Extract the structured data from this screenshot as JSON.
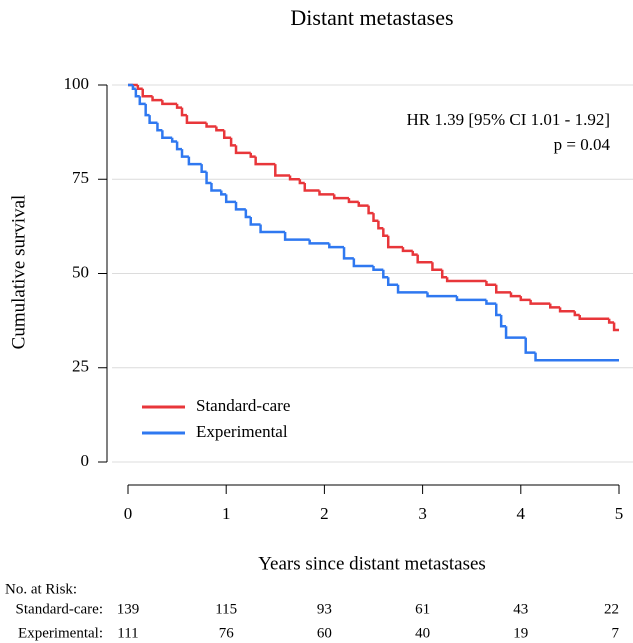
{
  "chart_data": {
    "type": "step",
    "title": "Distant metastases",
    "xlabel": "Years since distant metastases",
    "ylabel": "Cumulative survival",
    "annotations": [
      "HR 1.39 [95% CI 1.01 - 1.92]",
      "p = 0.04"
    ],
    "xlim": [
      0,
      5
    ],
    "xticks": [
      0,
      1,
      2,
      3,
      4,
      5
    ],
    "ylim": [
      0,
      100
    ],
    "yticks": [
      0,
      25,
      50,
      75,
      100
    ],
    "grid": true,
    "legend": "lower left",
    "series": [
      {
        "name": "Standard-care",
        "color": "#e8363a",
        "x": [
          0,
          0.1,
          0.15,
          0.25,
          0.35,
          0.5,
          0.55,
          0.6,
          0.8,
          0.9,
          0.98,
          1.05,
          1.1,
          1.25,
          1.3,
          1.5,
          1.65,
          1.75,
          1.8,
          1.95,
          2.1,
          2.25,
          2.35,
          2.45,
          2.5,
          2.55,
          2.6,
          2.65,
          2.8,
          2.9,
          2.95,
          3.1,
          3.2,
          3.25,
          3.65,
          3.75,
          3.9,
          4.0,
          4.1,
          4.3,
          4.4,
          4.55,
          4.6,
          4.9,
          4.95,
          5.0
        ],
        "values": [
          100,
          99,
          97,
          96,
          95,
          94,
          92,
          90,
          89,
          88,
          86,
          84,
          82,
          81,
          79,
          76,
          75,
          74,
          72,
          71,
          70,
          69,
          68,
          66,
          64,
          62,
          60,
          57,
          56,
          55,
          53,
          51,
          49,
          48,
          47,
          45,
          44,
          43,
          42,
          41,
          40,
          39,
          38,
          37,
          35,
          35
        ]
      },
      {
        "name": "Experimental",
        "color": "#2f78f0",
        "x": [
          0,
          0.05,
          0.08,
          0.12,
          0.18,
          0.22,
          0.3,
          0.35,
          0.45,
          0.5,
          0.55,
          0.62,
          0.75,
          0.8,
          0.85,
          0.95,
          1.0,
          1.1,
          1.2,
          1.25,
          1.35,
          1.6,
          1.85,
          2.05,
          2.2,
          2.3,
          2.5,
          2.6,
          2.65,
          2.75,
          3.05,
          3.35,
          3.65,
          3.75,
          3.8,
          3.85,
          4.05,
          4.15,
          5.0
        ],
        "values": [
          100,
          99,
          97,
          95,
          92,
          90,
          88,
          86,
          85,
          83,
          81,
          79,
          77,
          74,
          72,
          71,
          69,
          67,
          65,
          63,
          61,
          59,
          58,
          57,
          54,
          52,
          51,
          49,
          47,
          45,
          44,
          43,
          42,
          39,
          36,
          33,
          29,
          27,
          27
        ]
      }
    ],
    "risk_table": {
      "title": "No. at Risk:",
      "rows": [
        {
          "label": "Standard-care:",
          "values": [
            139,
            115,
            93,
            61,
            43,
            22
          ]
        },
        {
          "label": "Experimental:",
          "values": [
            111,
            76,
            60,
            40,
            19,
            7
          ]
        }
      ]
    }
  }
}
